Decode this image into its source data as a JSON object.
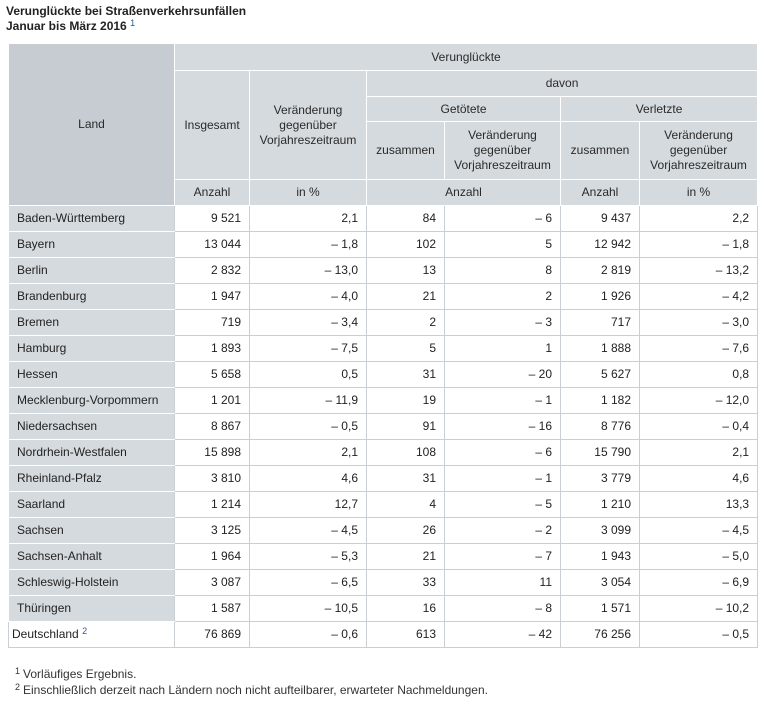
{
  "title": {
    "line1": "Verunglückte bei Straßenverkehrsunfällen",
    "line2": "Januar bis März 2016",
    "footnote_ref": "1"
  },
  "header": {
    "land": "Land",
    "verunglueckte": "Verunglückte",
    "insgesamt": "Insgesamt",
    "veraenderung": "Veränderung gegenüber Vorjahreszeitraum",
    "davon": "davon",
    "getoetete": "Getötete",
    "verletzte": "Verletzte",
    "zusammen": "zusammen",
    "anzahl": "Anzahl",
    "in_prozent": "in %"
  },
  "rows": [
    {
      "land": "Baden-Württemberg",
      "insgesamt": "9 521",
      "veraenderung": "2,1",
      "getoetete": "84",
      "getoetete_veraenderung": "– 6",
      "verletzte": "9 437",
      "verletzte_veraenderung": "2,2"
    },
    {
      "land": "Bayern",
      "insgesamt": "13 044",
      "veraenderung": "– 1,8",
      "getoetete": "102",
      "getoetete_veraenderung": "5",
      "verletzte": "12 942",
      "verletzte_veraenderung": "– 1,8"
    },
    {
      "land": "Berlin",
      "insgesamt": "2 832",
      "veraenderung": "– 13,0",
      "getoetete": "13",
      "getoetete_veraenderung": "8",
      "verletzte": "2 819",
      "verletzte_veraenderung": "– 13,2"
    },
    {
      "land": "Brandenburg",
      "insgesamt": "1 947",
      "veraenderung": "– 4,0",
      "getoetete": "21",
      "getoetete_veraenderung": "2",
      "verletzte": "1 926",
      "verletzte_veraenderung": "– 4,2"
    },
    {
      "land": "Bremen",
      "insgesamt": "719",
      "veraenderung": "– 3,4",
      "getoetete": "2",
      "getoetete_veraenderung": "– 3",
      "verletzte": "717",
      "verletzte_veraenderung": "– 3,0"
    },
    {
      "land": "Hamburg",
      "insgesamt": "1 893",
      "veraenderung": "– 7,5",
      "getoetete": "5",
      "getoetete_veraenderung": "1",
      "verletzte": "1 888",
      "verletzte_veraenderung": "– 7,6"
    },
    {
      "land": "Hessen",
      "insgesamt": "5 658",
      "veraenderung": "0,5",
      "getoetete": "31",
      "getoetete_veraenderung": "– 20",
      "verletzte": "5 627",
      "verletzte_veraenderung": "0,8"
    },
    {
      "land": "Mecklenburg-Vorpommern",
      "insgesamt": "1 201",
      "veraenderung": "– 11,9",
      "getoetete": "19",
      "getoetete_veraenderung": "– 1",
      "verletzte": "1 182",
      "verletzte_veraenderung": "– 12,0"
    },
    {
      "land": "Niedersachsen",
      "insgesamt": "8 867",
      "veraenderung": "– 0,5",
      "getoetete": "91",
      "getoetete_veraenderung": "– 16",
      "verletzte": "8 776",
      "verletzte_veraenderung": "– 0,4"
    },
    {
      "land": "Nordrhein-Westfalen",
      "insgesamt": "15 898",
      "veraenderung": "2,1",
      "getoetete": "108",
      "getoetete_veraenderung": "– 6",
      "verletzte": "15 790",
      "verletzte_veraenderung": "2,1"
    },
    {
      "land": "Rheinland-Pfalz",
      "insgesamt": "3 810",
      "veraenderung": "4,6",
      "getoetete": "31",
      "getoetete_veraenderung": "– 1",
      "verletzte": "3 779",
      "verletzte_veraenderung": "4,6"
    },
    {
      "land": "Saarland",
      "insgesamt": "1 214",
      "veraenderung": "12,7",
      "getoetete": "4",
      "getoetete_veraenderung": "– 5",
      "verletzte": "1 210",
      "verletzte_veraenderung": "13,3"
    },
    {
      "land": "Sachsen",
      "insgesamt": "3 125",
      "veraenderung": "– 4,5",
      "getoetete": "26",
      "getoetete_veraenderung": "– 2",
      "verletzte": "3 099",
      "verletzte_veraenderung": "– 4,5"
    },
    {
      "land": "Sachsen-Anhalt",
      "insgesamt": "1 964",
      "veraenderung": "– 5,3",
      "getoetete": "21",
      "getoetete_veraenderung": "– 7",
      "verletzte": "1 943",
      "verletzte_veraenderung": "– 5,0"
    },
    {
      "land": "Schleswig-Holstein",
      "insgesamt": "3 087",
      "veraenderung": "– 6,5",
      "getoetete": "33",
      "getoetete_veraenderung": "11",
      "verletzte": "3 054",
      "verletzte_veraenderung": "– 6,9"
    },
    {
      "land": "Thüringen",
      "insgesamt": "1 587",
      "veraenderung": "– 10,5",
      "getoetete": "16",
      "getoetete_veraenderung": "– 8",
      "verletzte": "1 571",
      "verletzte_veraenderung": "– 10,2"
    }
  ],
  "total": {
    "land": "Deutschland",
    "footnote_ref": "2",
    "insgesamt": "76 869",
    "veraenderung": "– 0,6",
    "getoetete": "613",
    "getoetete_veraenderung": "– 42",
    "verletzte": "76 256",
    "verletzte_veraenderung": "– 0,5"
  },
  "footnotes": [
    {
      "num": "1",
      "text": "Vorläufiges Ergebnis."
    },
    {
      "num": "2",
      "text": "Einschließlich derzeit nach Ländern noch nicht aufteilbarer, erwarteter Nachmeldungen."
    }
  ]
}
